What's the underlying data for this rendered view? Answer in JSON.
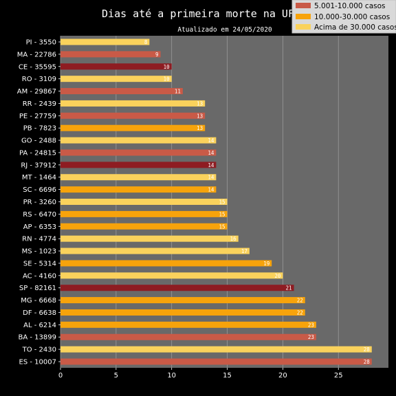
{
  "chart_data": {
    "type": "bar",
    "orientation": "horizontal",
    "title": "Dias até a primeira morte na UF",
    "subtitle": "Atualizado em 24/05/2020",
    "xlabel": "",
    "ylabel": "",
    "xlim": [
      0,
      29.5
    ],
    "xticks": [
      0,
      5,
      10,
      15,
      20,
      25
    ],
    "grid": "vertical",
    "legend_position": "top-right",
    "colors": {
      "background": "#000000",
      "plot_background": "#696969",
      "grid": "#9a9a9a",
      "text": "#ffffff"
    },
    "legend": [
      {
        "label": "5.001-10.000 casos",
        "color": "#c95a47"
      },
      {
        "label": "10.000-30.000 casos",
        "color": "#f7a30b"
      },
      {
        "label": "Acima de 30.000 casos",
        "color": "#fad25c"
      }
    ],
    "bars": [
      {
        "label": "PI - 3550",
        "value": 8,
        "color": "#fad25c"
      },
      {
        "label": "MA - 22786",
        "value": 9,
        "color": "#c95a47"
      },
      {
        "label": "CE - 35595",
        "value": 10,
        "color": "#8e1c22"
      },
      {
        "label": "RO - 3109",
        "value": 10,
        "color": "#fad25c"
      },
      {
        "label": "AM - 29867",
        "value": 11,
        "color": "#c95a47"
      },
      {
        "label": "RR - 2439",
        "value": 13,
        "color": "#fad25c"
      },
      {
        "label": "PE - 27759",
        "value": 13,
        "color": "#c95a47"
      },
      {
        "label": "PB - 7823",
        "value": 13,
        "color": "#f7a30b"
      },
      {
        "label": "GO - 2488",
        "value": 14,
        "color": "#fad25c"
      },
      {
        "label": "PA - 24815",
        "value": 14,
        "color": "#c95a47"
      },
      {
        "label": "RJ - 37912",
        "value": 14,
        "color": "#8e1c22"
      },
      {
        "label": "MT - 1464",
        "value": 14,
        "color": "#fad25c"
      },
      {
        "label": "SC - 6696",
        "value": 14,
        "color": "#f7a30b"
      },
      {
        "label": "PR - 3260",
        "value": 15,
        "color": "#fad25c"
      },
      {
        "label": "RS - 6470",
        "value": 15,
        "color": "#f7a30b"
      },
      {
        "label": "AP - 6353",
        "value": 15,
        "color": "#f7a30b"
      },
      {
        "label": "RN - 4774",
        "value": 16,
        "color": "#fad25c"
      },
      {
        "label": "MS - 1023",
        "value": 17,
        "color": "#fad25c"
      },
      {
        "label": "SE - 5314",
        "value": 19,
        "color": "#f7a30b"
      },
      {
        "label": "AC - 4160",
        "value": 20,
        "color": "#fad25c"
      },
      {
        "label": "SP - 82161",
        "value": 21,
        "color": "#8e1c22"
      },
      {
        "label": "MG - 6668",
        "value": 22,
        "color": "#f7a30b"
      },
      {
        "label": "DF - 6638",
        "value": 22,
        "color": "#f7a30b"
      },
      {
        "label": "AL - 6214",
        "value": 23,
        "color": "#f7a30b"
      },
      {
        "label": "BA - 13899",
        "value": 23,
        "color": "#c95a47"
      },
      {
        "label": "TO - 2430",
        "value": 28,
        "color": "#fad25c"
      },
      {
        "label": "ES - 10007",
        "value": 28,
        "color": "#c95a47"
      }
    ]
  }
}
